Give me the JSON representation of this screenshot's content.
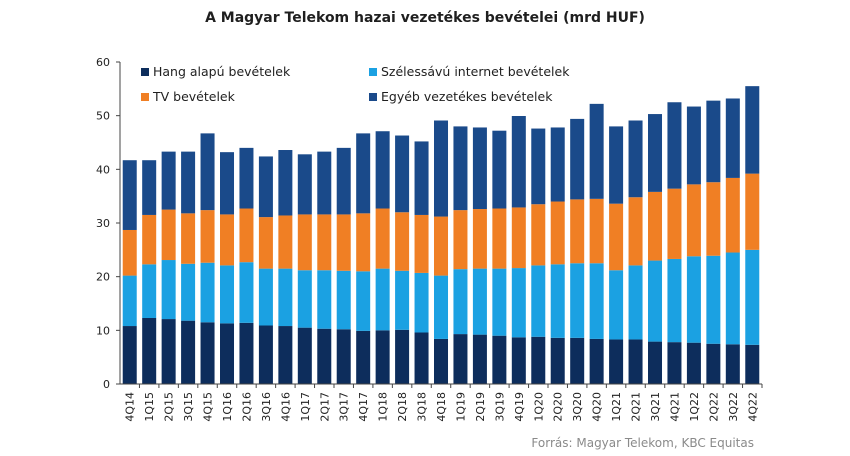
{
  "chart_data": {
    "type": "bar",
    "stacked": true,
    "title": "A Magyar Telekom hazai vezetékes bevételei  (mrd HUF)",
    "source": "Forrás: Magyar Telekom, KBC Equitas",
    "xlabel": "",
    "ylabel": "",
    "ylim": [
      0,
      60
    ],
    "yticks": [
      0,
      10,
      20,
      30,
      40,
      50,
      60
    ],
    "grid": false,
    "legend_position": "top-left, inside plot, two columns",
    "categories": [
      "4Q14",
      "1Q15",
      "2Q15",
      "3Q15",
      "4Q15",
      "1Q16",
      "2Q16",
      "3Q16",
      "4Q16",
      "1Q17",
      "2Q17",
      "3Q17",
      "4Q17",
      "1Q18",
      "2Q18",
      "3Q18",
      "4Q18",
      "1Q19",
      "2Q19",
      "3Q19",
      "4Q19",
      "1Q20",
      "2Q20",
      "3Q20",
      "4Q20",
      "1Q21",
      "2Q21",
      "3Q21",
      "4Q21",
      "1Q22",
      "2Q22",
      "3Q22",
      "4Q22"
    ],
    "series": [
      {
        "name": "Hang alapú bevételek",
        "color": "#0d2d5c",
        "values": [
          10.8,
          12.3,
          12.1,
          11.8,
          11.5,
          11.3,
          11.4,
          10.9,
          10.8,
          10.5,
          10.3,
          10.2,
          9.9,
          10.0,
          10.1,
          9.6,
          8.4,
          9.3,
          9.2,
          9.0,
          8.7,
          8.8,
          8.6,
          8.6,
          8.4,
          8.3,
          8.3,
          7.9,
          7.8,
          7.7,
          7.5,
          7.4,
          7.3
        ]
      },
      {
        "name": "Szélessávú internet bevételek",
        "color": "#1ba1e2",
        "values": [
          9.4,
          10.0,
          11.0,
          10.6,
          11.1,
          10.8,
          11.3,
          10.6,
          10.7,
          10.7,
          10.9,
          10.9,
          11.1,
          11.5,
          11.0,
          11.1,
          11.8,
          12.1,
          12.3,
          12.5,
          12.9,
          13.3,
          13.7,
          13.9,
          14.1,
          12.9,
          13.8,
          15.1,
          15.5,
          16.1,
          16.4,
          17.1,
          17.7
        ]
      },
      {
        "name": "TV bevételek",
        "color": "#f07f24",
        "values": [
          8.5,
          9.2,
          9.4,
          9.4,
          9.8,
          9.5,
          10.0,
          9.6,
          9.9,
          10.4,
          10.4,
          10.5,
          10.8,
          11.2,
          10.9,
          10.8,
          11.0,
          11.0,
          11.1,
          11.2,
          11.3,
          11.4,
          11.7,
          11.9,
          12.0,
          12.4,
          12.7,
          12.8,
          13.1,
          13.4,
          13.7,
          13.9,
          14.2
        ]
      },
      {
        "name": "Egyéb vezetékes bevételek",
        "color": "#1a4a8a",
        "values": [
          13.0,
          10.2,
          10.8,
          11.5,
          14.3,
          11.6,
          11.3,
          11.3,
          12.2,
          11.2,
          11.7,
          12.4,
          14.9,
          14.4,
          14.3,
          13.7,
          17.9,
          15.6,
          15.2,
          14.5,
          17.1,
          14.1,
          13.8,
          15.0,
          17.7,
          14.4,
          14.3,
          14.5,
          16.1,
          14.5,
          15.2,
          14.8,
          16.3
        ]
      }
    ]
  }
}
